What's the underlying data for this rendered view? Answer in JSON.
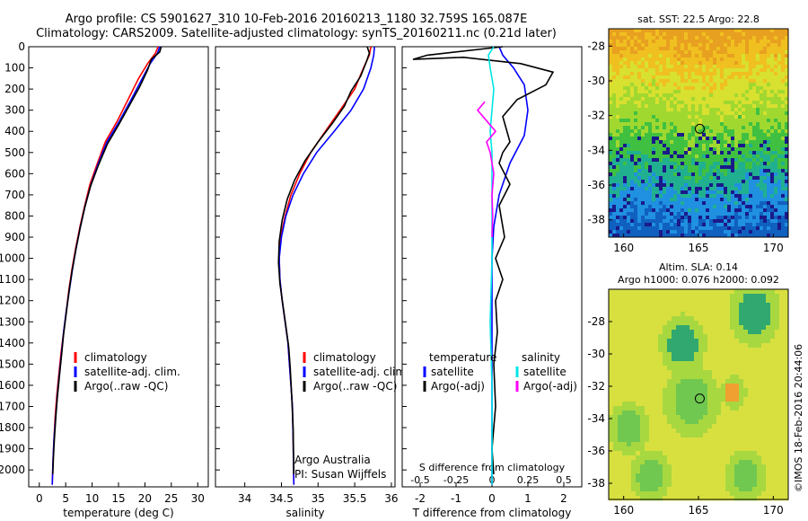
{
  "header": {
    "line1": "Argo profile: CS 5901627_310 10-Feb-2016 20160213_1180 32.759S 165.087E",
    "line2": "Climatology: CARS2009. Satellite-adjusted climatology: synTS_20160211.nc (0.21d later)"
  },
  "chart_data": [
    {
      "type": "line",
      "panel": "temperature",
      "xlabel": "temperature (deg C)",
      "xlim": [
        -2,
        32
      ],
      "xticks": [
        0,
        5,
        10,
        15,
        20,
        25,
        30
      ],
      "ylim": [
        0,
        2080
      ],
      "yticks": [
        0,
        100,
        200,
        300,
        400,
        500,
        600,
        700,
        800,
        900,
        1000,
        1100,
        1200,
        1300,
        1400,
        1500,
        1600,
        1700,
        1800,
        1900,
        2000
      ],
      "legend": {
        "items": [
          "climatology",
          "satellite-adj. clim.",
          "Argo(..raw -QC)"
        ],
        "position": "lower-center"
      },
      "series": [
        {
          "name": "climatology",
          "color": "#ff0000",
          "x": [
            22.5,
            22.0,
            20.5,
            18.8,
            16.8,
            14.8,
            12.5,
            11.0,
            9.6,
            8.6,
            7.7,
            6.9,
            6.2,
            5.6,
            5.1,
            4.6,
            4.1,
            3.7,
            3.3,
            3.0,
            2.8,
            2.6,
            2.5,
            2.45
          ],
          "y": [
            0,
            30,
            80,
            150,
            250,
            350,
            450,
            550,
            650,
            750,
            850,
            950,
            1050,
            1150,
            1250,
            1350,
            1450,
            1550,
            1650,
            1750,
            1850,
            1950,
            2030,
            2070
          ]
        },
        {
          "name": "satellite-adj. clim.",
          "color": "#0000ff",
          "x": [
            22.8,
            22.4,
            21.0,
            19.5,
            17.4,
            15.2,
            12.8,
            11.2,
            9.8,
            8.7,
            7.8,
            7.0,
            6.3,
            5.7,
            5.1,
            4.6,
            4.2,
            3.8,
            3.4,
            3.1,
            2.8,
            2.6,
            2.5,
            2.45
          ],
          "y": [
            0,
            30,
            80,
            150,
            250,
            350,
            450,
            550,
            650,
            750,
            850,
            950,
            1050,
            1150,
            1250,
            1350,
            1450,
            1550,
            1650,
            1750,
            1850,
            1950,
            2030,
            2070
          ]
        },
        {
          "name": "Argo(..raw -QC)",
          "color": "#000000",
          "x": [
            23.1,
            22.8,
            21.2,
            20.5,
            19.0,
            17.0,
            15.0,
            12.9,
            11.2,
            9.7,
            8.6,
            7.7,
            6.9,
            6.2,
            5.6,
            5.1,
            4.6,
            4.2,
            3.8,
            3.4,
            3.1,
            2.85,
            2.65,
            2.55
          ],
          "y": [
            0,
            25,
            60,
            110,
            190,
            280,
            370,
            460,
            560,
            660,
            760,
            860,
            960,
            1060,
            1160,
            1260,
            1360,
            1460,
            1560,
            1660,
            1760,
            1860,
            1950,
            2020
          ]
        }
      ]
    },
    {
      "type": "line",
      "panel": "salinity",
      "xlabel": "salinity",
      "xlim": [
        33.6,
        36.05
      ],
      "xticks": [
        34,
        34.5,
        35,
        35.5,
        36
      ],
      "ylim": [
        0,
        2080
      ],
      "legend": {
        "items": [
          "climatology",
          "satellite-adj. clim.",
          "Argo(..raw -QC)"
        ],
        "position": "lower-center"
      },
      "annotation": {
        "line1": "Argo Australia",
        "line2": "PI: Susan Wijffels"
      },
      "series": [
        {
          "name": "climatology",
          "color": "#ff0000",
          "x": [
            35.72,
            35.7,
            35.62,
            35.5,
            35.3,
            35.1,
            34.9,
            34.75,
            34.63,
            34.55,
            34.49,
            34.47,
            34.48,
            34.51,
            34.55,
            34.59,
            34.61,
            34.63,
            34.65,
            34.66,
            34.67
          ],
          "y": [
            0,
            40,
            100,
            200,
            300,
            400,
            500,
            600,
            700,
            800,
            900,
            1000,
            1100,
            1200,
            1300,
            1400,
            1500,
            1600,
            1700,
            1850,
            2070
          ]
        },
        {
          "name": "satellite-adj. clim.",
          "color": "#0000ff",
          "x": [
            35.77,
            35.76,
            35.72,
            35.62,
            35.45,
            35.22,
            34.98,
            34.8,
            34.66,
            34.56,
            34.5,
            34.47,
            34.48,
            34.51,
            34.55,
            34.59,
            34.61,
            34.63,
            34.65,
            34.66,
            34.67
          ],
          "y": [
            0,
            40,
            100,
            200,
            300,
            400,
            500,
            600,
            700,
            800,
            900,
            1000,
            1100,
            1200,
            1300,
            1400,
            1500,
            1600,
            1700,
            1850,
            2070
          ]
        },
        {
          "name": "Argo(..raw -QC)",
          "color": "#000000",
          "x": [
            35.67,
            35.7,
            35.66,
            35.58,
            35.45,
            35.36,
            35.2,
            35.0,
            34.82,
            34.68,
            34.58,
            34.51,
            34.47,
            34.46,
            34.48,
            34.52,
            34.56,
            34.6,
            34.62,
            34.64,
            34.66,
            34.67
          ],
          "y": [
            0,
            30,
            70,
            140,
            210,
            280,
            360,
            450,
            540,
            630,
            720,
            820,
            920,
            1020,
            1120,
            1220,
            1320,
            1420,
            1520,
            1650,
            1800,
            2020
          ]
        }
      ]
    },
    {
      "type": "line",
      "panel": "differences",
      "xlabel": "T difference from climatology",
      "xlabel_top": "S difference from climatology",
      "xlim": [
        -2.5,
        2.5
      ],
      "xticks": [
        -2,
        -1,
        0,
        1,
        2
      ],
      "xticks_top": [
        "-0.5",
        "-0.25",
        "0",
        "0.25",
        "0.5"
      ],
      "ylim": [
        0,
        2080
      ],
      "legend": {
        "headers": [
          "temperature",
          "salinity"
        ],
        "items": [
          "satellite",
          "Argo(-adj)",
          "satellite",
          "Argo(-adj)"
        ],
        "position": "lower-center"
      },
      "series": [
        {
          "name": "satellite",
          "group": "temperature",
          "color": "#0000ff",
          "x": [
            0.2,
            0.3,
            0.6,
            0.9,
            1.0,
            0.9,
            0.5,
            0.2,
            0.05,
            0.0,
            0.0,
            0.0,
            0.0,
            0.0
          ],
          "y": [
            0,
            40,
            100,
            180,
            300,
            420,
            550,
            700,
            850,
            1000,
            1200,
            1500,
            1800,
            2070
          ]
        },
        {
          "name": "Argo(-adj)",
          "group": "temperature",
          "color": "#000000",
          "x": [
            0.3,
            -1.8,
            -2.2,
            -0.8,
            0.8,
            1.7,
            1.5,
            0.7,
            0.3,
            0.5,
            0.3,
            0.2,
            0.5,
            0.2,
            0.35,
            0.1,
            0.3,
            0.1,
            0.15,
            0.05,
            0.1,
            0.0,
            0.05
          ],
          "y": [
            0,
            40,
            60,
            50,
            80,
            120,
            180,
            250,
            330,
            450,
            500,
            550,
            650,
            750,
            900,
            1000,
            1100,
            1200,
            1350,
            1500,
            1700,
            1900,
            2020
          ]
        },
        {
          "name": "satellite",
          "group": "salinity",
          "color": "#00e5e5",
          "x": [
            0.05,
            -0.1,
            -0.05,
            0.05,
            0.0,
            -0.05,
            0.0,
            0.0,
            0.0,
            0.0,
            -0.05,
            0.0,
            0.0
          ],
          "y": [
            0,
            40,
            100,
            200,
            300,
            400,
            500,
            600,
            800,
            1000,
            1300,
            1600,
            2070
          ]
        },
        {
          "name": "Argo(-adj)",
          "group": "salinity",
          "color": "#ff00ff",
          "x": [
            -0.2,
            -0.4,
            -0.1,
            0.1,
            -0.15,
            -0.05,
            0.05,
            0.0,
            0.02,
            0.0
          ],
          "y": [
            260,
            300,
            360,
            400,
            450,
            500,
            600,
            700,
            800,
            900
          ]
        }
      ]
    },
    {
      "type": "heatmap",
      "panel": "sst-map",
      "title": "sat. SST: 22.5  Argo: 22.8",
      "xlim": [
        159,
        171
      ],
      "ylim": [
        -39,
        -27
      ],
      "xticks": [
        160,
        165,
        170
      ],
      "yticks": [
        -28,
        -30,
        -32,
        -34,
        -36,
        -38
      ],
      "marker": {
        "lon": 165.087,
        "lat": -32.759
      },
      "colors": [
        "#e8a020",
        "#f0c020",
        "#d8e030",
        "#a0d830",
        "#40c040",
        "#20b090",
        "#2090e0",
        "#1060c0",
        "#1a1a8a"
      ]
    },
    {
      "type": "heatmap",
      "panel": "sla-map",
      "title_line1": "Altim. SLA: 0.14",
      "title_line2": "Argo h1000: 0.076 h2000: 0.092",
      "xlim": [
        159,
        171
      ],
      "ylim": [
        -39,
        -26
      ],
      "xticks": [
        160,
        165,
        170
      ],
      "yticks": [
        -28,
        -30,
        -32,
        -34,
        -36,
        -38
      ],
      "marker": {
        "lon": 165.087,
        "lat": -32.759
      },
      "colors": [
        "#f0d030",
        "#d8e040",
        "#a8d840",
        "#70c850",
        "#30a870",
        "#f0a030"
      ]
    }
  ],
  "footer": {
    "credit": "©IMOS 18-Feb-2016 20:44:06"
  }
}
